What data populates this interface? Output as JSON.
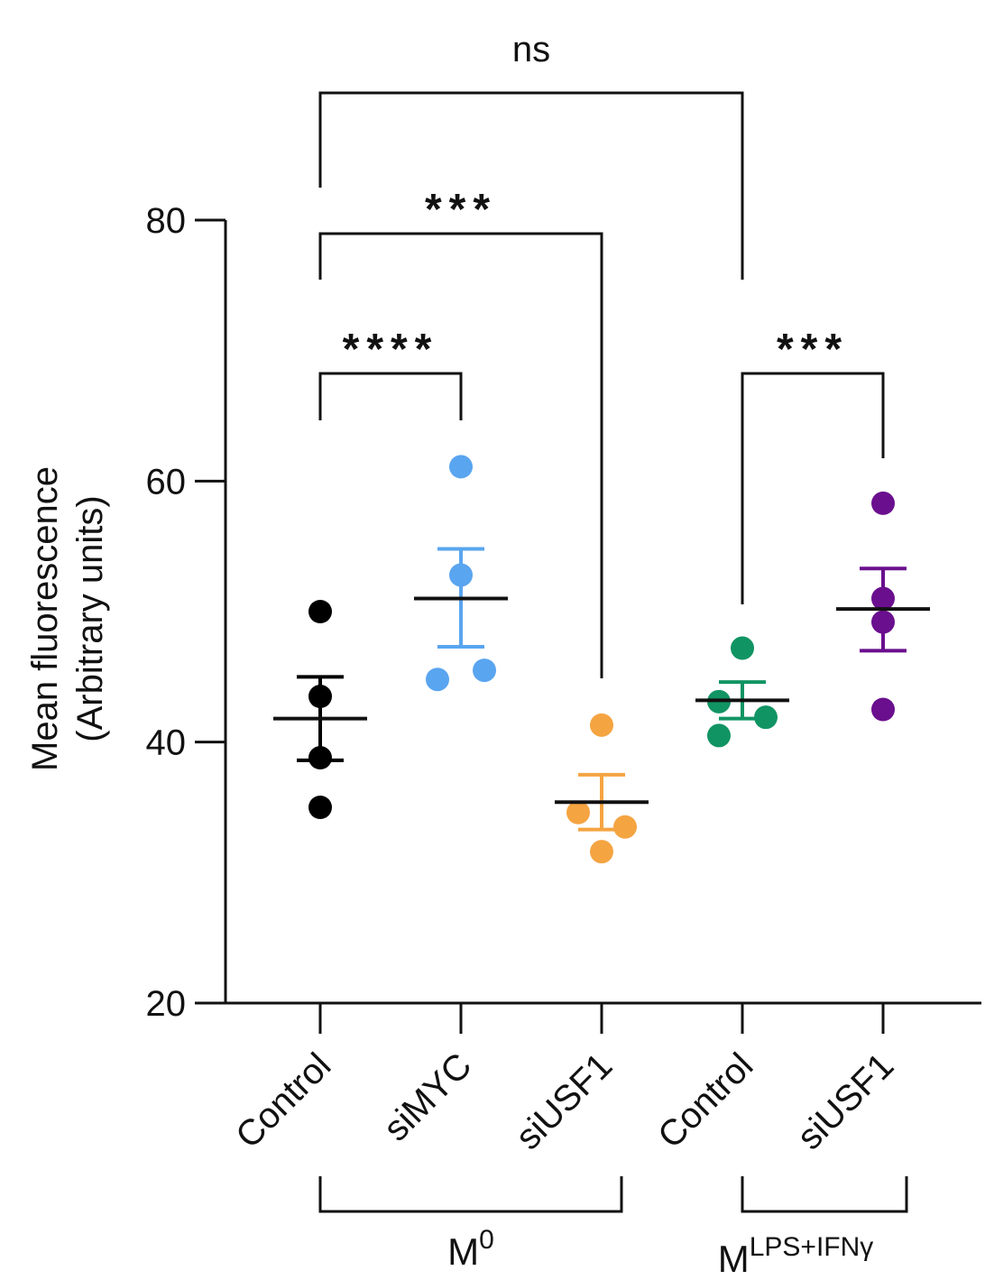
{
  "chart_data": {
    "type": "scatter",
    "title": "",
    "xlabel": "",
    "ylabel": [
      "Mean fluorescence",
      "(Arbitrary units)"
    ],
    "ylim": [
      20,
      80
    ],
    "yticks": [
      "20",
      "40",
      "60",
      "80"
    ],
    "categories": [
      "Control",
      "siMYC",
      "siUSF1",
      "Control",
      "siUSF1"
    ],
    "series": [
      {
        "name": "M0 Control",
        "color": "#000000",
        "points": [
          50.0,
          43.5,
          38.8,
          35.0
        ],
        "mean": 41.8,
        "sem_low": 38.6,
        "sem_high": 45.0
      },
      {
        "name": "M0 siMYC",
        "color": "#5aa5f0",
        "points": [
          61.1,
          52.8,
          44.8,
          45.5
        ],
        "mean": 51.0,
        "sem_low": 47.3,
        "sem_high": 54.8
      },
      {
        "name": "M0 siUSF1",
        "color": "#f5a442",
        "points": [
          41.3,
          34.6,
          33.5,
          31.6
        ],
        "mean": 35.4,
        "sem_low": 33.3,
        "sem_high": 37.5
      },
      {
        "name": "MLPS+IFNy Control",
        "color": "#119463",
        "points": [
          47.2,
          43.1,
          41.9,
          40.5
        ],
        "mean": 43.2,
        "sem_low": 41.8,
        "sem_high": 44.6
      },
      {
        "name": "MLPS+IFNy siUSF1",
        "color": "#6a0f8e",
        "points": [
          58.3,
          51.0,
          49.2,
          42.5
        ],
        "mean": 50.2,
        "sem_low": 47.0,
        "sem_high": 53.3
      }
    ],
    "comparisons": [
      {
        "label": "ns",
        "from": 0,
        "to": 3
      },
      {
        "label": "***",
        "from": 0,
        "to": 2
      },
      {
        "label": "****",
        "from": 0,
        "to": 1
      },
      {
        "label": "***",
        "from": 3,
        "to": 4
      }
    ],
    "groups": [
      {
        "main": "M",
        "sup": "0",
        "from": 0,
        "to": 2
      },
      {
        "main": "M",
        "sup": "LPS+IFNγ",
        "from": 3,
        "to": 4
      }
    ]
  }
}
